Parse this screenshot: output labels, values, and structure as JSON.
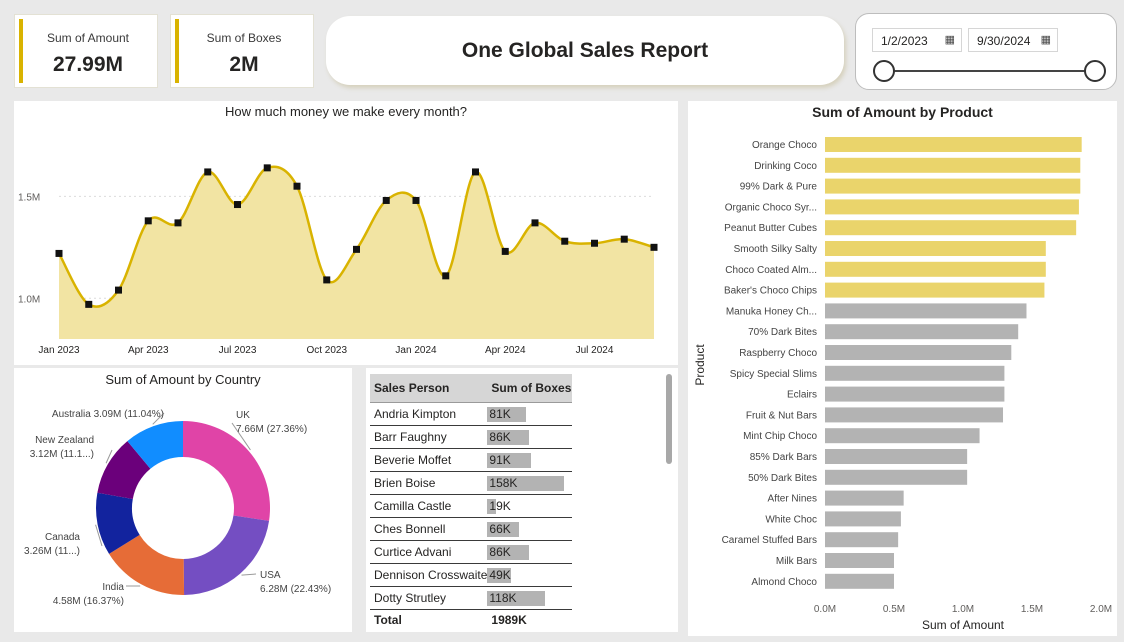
{
  "cards": [
    {
      "label": "Sum of Amount",
      "value": "27.99M"
    },
    {
      "label": "Sum of Boxes",
      "value": "2M"
    }
  ],
  "report_title": "One Global Sales Report",
  "date_slicer": {
    "start": "1/2/2023",
    "end": "9/30/2024",
    "calendar_icon": "calendar-icon"
  },
  "line_chart": {
    "title": "How much money we make every month?",
    "chart_data": {
      "type": "area",
      "x": [
        "Jan 2023",
        "Feb 2023",
        "Mar 2023",
        "Apr 2023",
        "May 2023",
        "Jun 2023",
        "Jul 2023",
        "Aug 2023",
        "Sep 2023",
        "Oct 2023",
        "Nov 2023",
        "Dec 2023",
        "Jan 2024",
        "Feb 2024",
        "Mar 2024",
        "Apr 2024",
        "May 2024",
        "Jun 2024",
        "Jul 2024",
        "Aug 2024",
        "Sep 2024"
      ],
      "values": [
        1.22,
        0.97,
        1.04,
        1.38,
        1.37,
        1.62,
        1.46,
        1.64,
        1.55,
        1.09,
        1.24,
        1.48,
        1.48,
        1.11,
        1.62,
        1.23,
        1.37,
        1.28,
        1.27,
        1.29,
        1.25
      ],
      "xticks": [
        "Jan 2023",
        "Apr 2023",
        "Jul 2023",
        "Oct 2023",
        "Jan 2024",
        "Apr 2024",
        "Jul 2024"
      ],
      "xtick_index": [
        0,
        3,
        6,
        9,
        12,
        15,
        18
      ],
      "yticks": [
        {
          "v": 1.0,
          "label": "1.0M"
        },
        {
          "v": 1.5,
          "label": "1.5M"
        }
      ],
      "ylim": [
        0.8,
        1.87
      ],
      "color": "#d9b300",
      "fill": "#f2e4a3"
    }
  },
  "donut_chart": {
    "title": "Sum of Amount by Country",
    "chart_data": {
      "type": "pie",
      "slices": [
        {
          "name": "UK",
          "value": 7.66,
          "label1": "UK",
          "label2": "7.66M (27.36%)",
          "color": "#e044a7"
        },
        {
          "name": "USA",
          "value": 6.28,
          "label1": "USA",
          "label2": "6.28M (22.43%)",
          "color": "#744ec2"
        },
        {
          "name": "India",
          "value": 4.58,
          "label1": "India",
          "label2": "4.58M (16.37%)",
          "color": "#e66c37"
        },
        {
          "name": "Canada",
          "value": 3.26,
          "label1": "Canada",
          "label2": "3.26M (11...)",
          "color": "#12239e"
        },
        {
          "name": "New Zealand",
          "value": 3.12,
          "label1": "New Zealand",
          "label2": "3.12M (11.1...)",
          "color": "#6b007b"
        },
        {
          "name": "Australia",
          "value": 3.09,
          "label1": "Australia 3.09M (11.04%)",
          "label2": "",
          "color": "#118dff"
        }
      ]
    }
  },
  "table": {
    "headers": [
      "Sales Person",
      "Sum of Boxes"
    ],
    "rows": [
      {
        "name": "Andria Kimpton",
        "boxes": "81K",
        "v": 81
      },
      {
        "name": "Barr Faughny",
        "boxes": "86K",
        "v": 86
      },
      {
        "name": "Beverie Moffet",
        "boxes": "91K",
        "v": 91
      },
      {
        "name": "Brien Boise",
        "boxes": "158K",
        "v": 158
      },
      {
        "name": "Camilla Castle",
        "boxes": "19K",
        "v": 19
      },
      {
        "name": "Ches Bonnell",
        "boxes": "66K",
        "v": 66
      },
      {
        "name": "Curtice Advani",
        "boxes": "86K",
        "v": 86
      },
      {
        "name": "Dennison Crosswaite",
        "boxes": "49K",
        "v": 49
      },
      {
        "name": "Dotty Strutley",
        "boxes": "118K",
        "v": 118
      }
    ],
    "total_label": "Total",
    "total_value": "1989K"
  },
  "product_chart": {
    "title": "Sum of Amount by Product",
    "xlabel": "Sum of Amount",
    "ylabel": "Product",
    "chart_data": {
      "type": "bar",
      "orientation": "horizontal",
      "categories": [
        "Orange Choco",
        "Drinking Coco",
        "99% Dark & Pure",
        "Organic Choco Syr...",
        "Peanut Butter Cubes",
        "Smooth Silky Salty",
        "Choco Coated Alm...",
        "Baker's Choco Chips",
        "Manuka Honey Ch...",
        "70% Dark Bites",
        "Raspberry Choco",
        "Spicy Special Slims",
        "Eclairs",
        "Fruit & Nut Bars",
        "Mint Chip Choco",
        "85% Dark Bars",
        "50% Dark Bites",
        "After Nines",
        "White Choc",
        "Caramel Stuffed Bars",
        "Milk Bars",
        "Almond Choco"
      ],
      "values": [
        1.86,
        1.85,
        1.85,
        1.84,
        1.82,
        1.6,
        1.6,
        1.59,
        1.46,
        1.4,
        1.35,
        1.3,
        1.3,
        1.29,
        1.12,
        1.03,
        1.03,
        0.57,
        0.55,
        0.53,
        0.5,
        0.5
      ],
      "highlighted": 8,
      "highlight_color": "#ead46b",
      "base_color": "#b3b3b3",
      "xticks": [
        "0.0M",
        "0.5M",
        "1.0M",
        "1.5M",
        "2.0M"
      ],
      "xlim": [
        0,
        2.0
      ]
    }
  }
}
